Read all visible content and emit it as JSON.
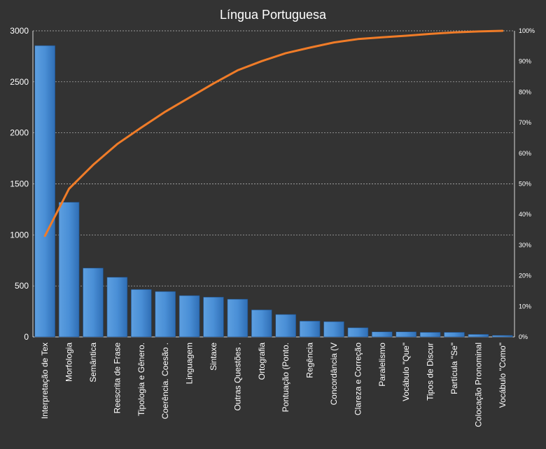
{
  "chart_data": {
    "type": "bar",
    "title": "Língua Portuguesa",
    "categories": [
      "Interpretação de Tex",
      "Morfologia",
      "Semântica",
      "Reescrita de Frase",
      "Tipologia e Gênero.",
      "Coerência. Coesão .",
      "Linguagem",
      "Sintaxe",
      "Outras Questões .",
      "Ortografia",
      "Pontuação (Ponto.",
      "Regência",
      "Concordância (V",
      "Clareza e Correção",
      "Paralelismo",
      "Vocábulo \"Que\"",
      "Tipos de Discur",
      "Partícula \"Se\"",
      "Colocação Pronominal",
      "Vocábulo \"Como\""
    ],
    "series": [
      {
        "type": "bar",
        "values": [
          2855,
          1320,
          675,
          585,
          465,
          445,
          405,
          390,
          370,
          265,
          220,
          155,
          150,
          90,
          50,
          50,
          45,
          45,
          25,
          15
        ],
        "color": "#4a8fd6"
      },
      {
        "type": "line",
        "axis": "right",
        "values": [
          0.33,
          0.484,
          0.562,
          0.63,
          0.684,
          0.736,
          0.782,
          0.828,
          0.871,
          0.901,
          0.927,
          0.945,
          0.962,
          0.973,
          0.979,
          0.984,
          0.99,
          0.995,
          0.998,
          1.0
        ],
        "color": "#f07c28"
      }
    ],
    "y_left": {
      "min": 0,
      "max": 3000,
      "ticks": [
        "0",
        "500",
        "1000",
        "1500",
        "2000",
        "2500",
        "3000"
      ]
    },
    "y_right": {
      "min": 0,
      "max": 1,
      "ticks": [
        "0%",
        "10%",
        "20%",
        "30%",
        "40%",
        "50%",
        "60%",
        "70%",
        "80%",
        "90%",
        "100%"
      ]
    },
    "grid": true,
    "legend": "none",
    "background": "#333333"
  }
}
